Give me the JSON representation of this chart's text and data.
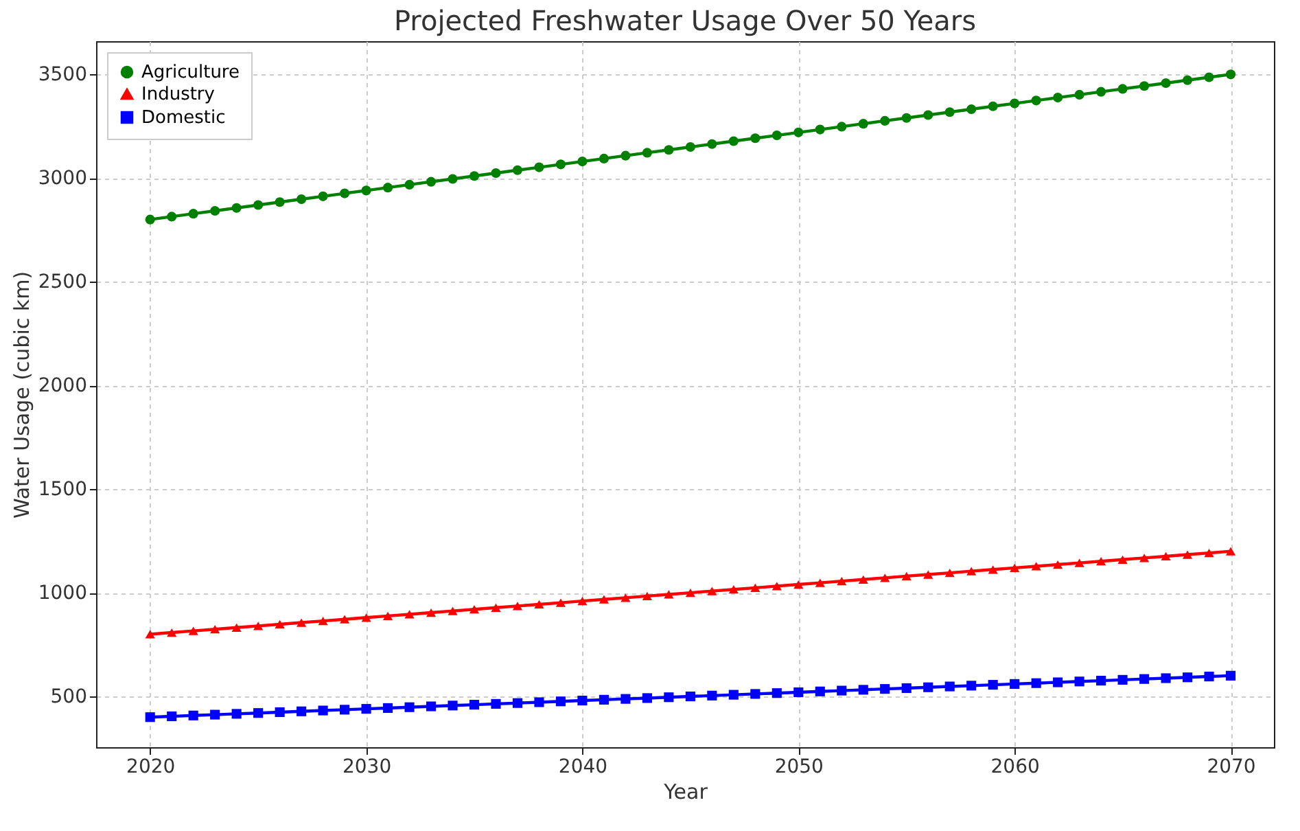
{
  "chart_data": {
    "type": "line",
    "title": "Projected Freshwater Usage Over 50 Years",
    "xlabel": "Year",
    "ylabel": "Water Usage (cubic km)",
    "x": [
      2020,
      2021,
      2022,
      2023,
      2024,
      2025,
      2026,
      2027,
      2028,
      2029,
      2030,
      2031,
      2032,
      2033,
      2034,
      2035,
      2036,
      2037,
      2038,
      2039,
      2040,
      2041,
      2042,
      2043,
      2044,
      2045,
      2046,
      2047,
      2048,
      2049,
      2050,
      2051,
      2052,
      2053,
      2054,
      2055,
      2056,
      2057,
      2058,
      2059,
      2060,
      2061,
      2062,
      2063,
      2064,
      2065,
      2066,
      2067,
      2068,
      2069,
      2070
    ],
    "series": [
      {
        "name": "Agriculture",
        "color": "#008000",
        "marker": "circle",
        "values": [
          2800,
          2814,
          2828,
          2842,
          2856,
          2870,
          2884,
          2898,
          2912,
          2926,
          2940,
          2954,
          2968,
          2982,
          2996,
          3010,
          3024,
          3038,
          3052,
          3066,
          3080,
          3094,
          3108,
          3122,
          3136,
          3150,
          3164,
          3178,
          3192,
          3206,
          3220,
          3234,
          3248,
          3262,
          3276,
          3290,
          3304,
          3318,
          3332,
          3346,
          3360,
          3374,
          3388,
          3402,
          3416,
          3430,
          3444,
          3458,
          3472,
          3486,
          3500
        ]
      },
      {
        "name": "Industry",
        "color": "#ff0000",
        "marker": "triangle",
        "values": [
          800,
          808,
          816,
          824,
          832,
          840,
          848,
          856,
          864,
          872,
          880,
          888,
          896,
          904,
          912,
          920,
          928,
          936,
          944,
          952,
          960,
          968,
          976,
          984,
          992,
          1000,
          1008,
          1016,
          1024,
          1032,
          1040,
          1048,
          1056,
          1064,
          1072,
          1080,
          1088,
          1096,
          1104,
          1112,
          1120,
          1128,
          1136,
          1144,
          1152,
          1160,
          1168,
          1176,
          1184,
          1192,
          1200
        ]
      },
      {
        "name": "Domestic",
        "color": "#0000ff",
        "marker": "square",
        "values": [
          400,
          404,
          408,
          412,
          416,
          420,
          424,
          428,
          432,
          436,
          440,
          444,
          448,
          452,
          456,
          460,
          464,
          468,
          472,
          476,
          480,
          484,
          488,
          492,
          496,
          500,
          504,
          508,
          512,
          516,
          520,
          524,
          528,
          532,
          536,
          540,
          544,
          548,
          552,
          556,
          560,
          564,
          568,
          572,
          576,
          580,
          584,
          588,
          592,
          596,
          600
        ]
      }
    ],
    "xlim": [
      2017.5,
      2072
    ],
    "xticks": [
      2020,
      2030,
      2040,
      2050,
      2060,
      2070
    ],
    "ylim": [
      255,
      3660
    ],
    "yticks": [
      500,
      1000,
      1500,
      2000,
      2500,
      3000,
      3500
    ],
    "grid": true,
    "legend": "top left",
    "line_style": "solid"
  }
}
